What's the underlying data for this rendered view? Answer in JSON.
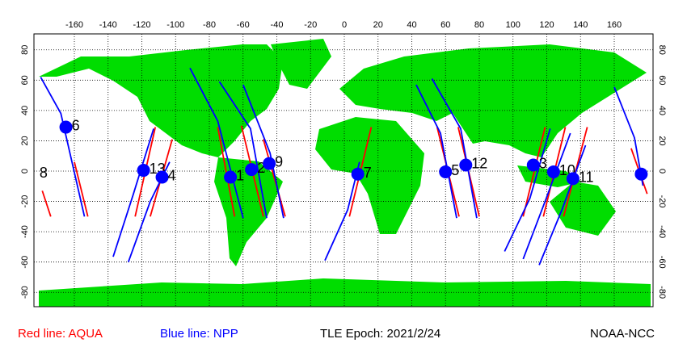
{
  "map": {
    "lonlim": [
      -180,
      180
    ],
    "latlim": [
      -90,
      90
    ],
    "lon_ticks": [
      -160,
      -140,
      -120,
      -100,
      -80,
      -60,
      -40,
      -20,
      0,
      20,
      40,
      60,
      80,
      100,
      120,
      140,
      160
    ],
    "lat_ticks": [
      -80,
      -60,
      -40,
      -20,
      0,
      20,
      40,
      60,
      80
    ],
    "land_color": "#00dd00",
    "point_color": "#0000ff",
    "aqua": {
      "label": "Red line: AQUA",
      "color": "#ff0000",
      "tracks": [
        [
          [
            -179,
            -13
          ],
          [
            -174,
            -30
          ]
        ],
        [
          [
            -160,
            6
          ],
          [
            -152,
            -30
          ]
        ],
        [
          [
            -124,
            -30
          ],
          [
            -112,
            29
          ]
        ],
        [
          [
            -115,
            -30
          ],
          [
            -102,
            21
          ]
        ],
        [
          [
            -75,
            29
          ],
          [
            -65,
            -30
          ]
        ],
        [
          [
            -61,
            30
          ],
          [
            -48,
            -30
          ]
        ],
        [
          [
            -48,
            21
          ],
          [
            -35,
            -30
          ]
        ],
        [
          [
            3,
            -30
          ],
          [
            16,
            29
          ]
        ],
        [
          [
            55,
            29
          ],
          [
            68,
            -30
          ]
        ],
        [
          [
            67.5,
            29
          ],
          [
            80,
            -30
          ]
        ],
        [
          [
            106,
            -30
          ],
          [
            119,
            29
          ]
        ],
        [
          [
            118,
            -30
          ],
          [
            131,
            29
          ]
        ],
        [
          [
            130,
            -30
          ],
          [
            144,
            29
          ]
        ],
        [
          [
            170,
            15
          ],
          [
            179.5,
            -15
          ]
        ]
      ]
    },
    "npp": {
      "label": "Blue line: NPP",
      "color": "#0000ff",
      "tracks": [
        [
          [
            -180,
            62
          ],
          [
            -168,
            38
          ],
          [
            -154,
            -30
          ]
        ],
        [
          [
            -137,
            -56.5
          ],
          [
            -125,
            -15
          ],
          [
            -113,
            28
          ]
        ],
        [
          [
            -128,
            -60
          ],
          [
            -115,
            -20
          ],
          [
            -103.5,
            6
          ]
        ],
        [
          [
            -91.5,
            68
          ],
          [
            -75,
            33
          ],
          [
            -60,
            -31
          ]
        ],
        [
          [
            -74,
            59
          ],
          [
            -55.6,
            28
          ],
          [
            -46,
            -31
          ]
        ],
        [
          [
            -60,
            57
          ],
          [
            -44,
            12
          ],
          [
            -36,
            -31
          ]
        ],
        [
          [
            -11.5,
            -59
          ],
          [
            2,
            -25.5
          ],
          [
            9,
            6
          ]
        ],
        [
          [
            42.6,
            57
          ],
          [
            57,
            25
          ],
          [
            66.6,
            -31
          ]
        ],
        [
          [
            52,
            61
          ],
          [
            69,
            28
          ],
          [
            78.5,
            -31
          ]
        ],
        [
          [
            95,
            -53
          ],
          [
            110,
            -18
          ],
          [
            122,
            28
          ]
        ],
        [
          [
            106,
            -58
          ],
          [
            119,
            -20
          ],
          [
            134,
            25
          ]
        ],
        [
          [
            115.5,
            -62
          ],
          [
            129,
            -25.5
          ],
          [
            143,
            17
          ]
        ],
        [
          [
            160,
            55.5
          ],
          [
            172,
            22
          ],
          [
            177,
            -9.6
          ]
        ]
      ]
    },
    "satellites": [
      {
        "label": "6",
        "lon": -165,
        "lat": 29
      },
      {
        "label": "13",
        "lon": -119,
        "lat": 0.5
      },
      {
        "label": "4",
        "lon": -108,
        "lat": -4
      },
      {
        "label": "1",
        "lon": -67.5,
        "lat": -4
      },
      {
        "label": "2",
        "lon": -55,
        "lat": 1
      },
      {
        "label": "9",
        "lon": -44.5,
        "lat": 5
      },
      {
        "label": "7",
        "lon": 8,
        "lat": -2
      },
      {
        "label": "5",
        "lon": 60,
        "lat": -0.5
      },
      {
        "label": "12",
        "lon": 72,
        "lat": 4
      },
      {
        "label": "3",
        "lon": 112,
        "lat": 4
      },
      {
        "label": "10",
        "lon": 124,
        "lat": -0.5
      },
      {
        "label": "11",
        "lon": 135.5,
        "lat": -5
      },
      {
        "label": "8",
        "lon": 176,
        "lat": -2
      }
    ]
  },
  "footer": {
    "epoch": "TLE Epoch: 2021/2/24",
    "source": "NOAA-NCC"
  }
}
